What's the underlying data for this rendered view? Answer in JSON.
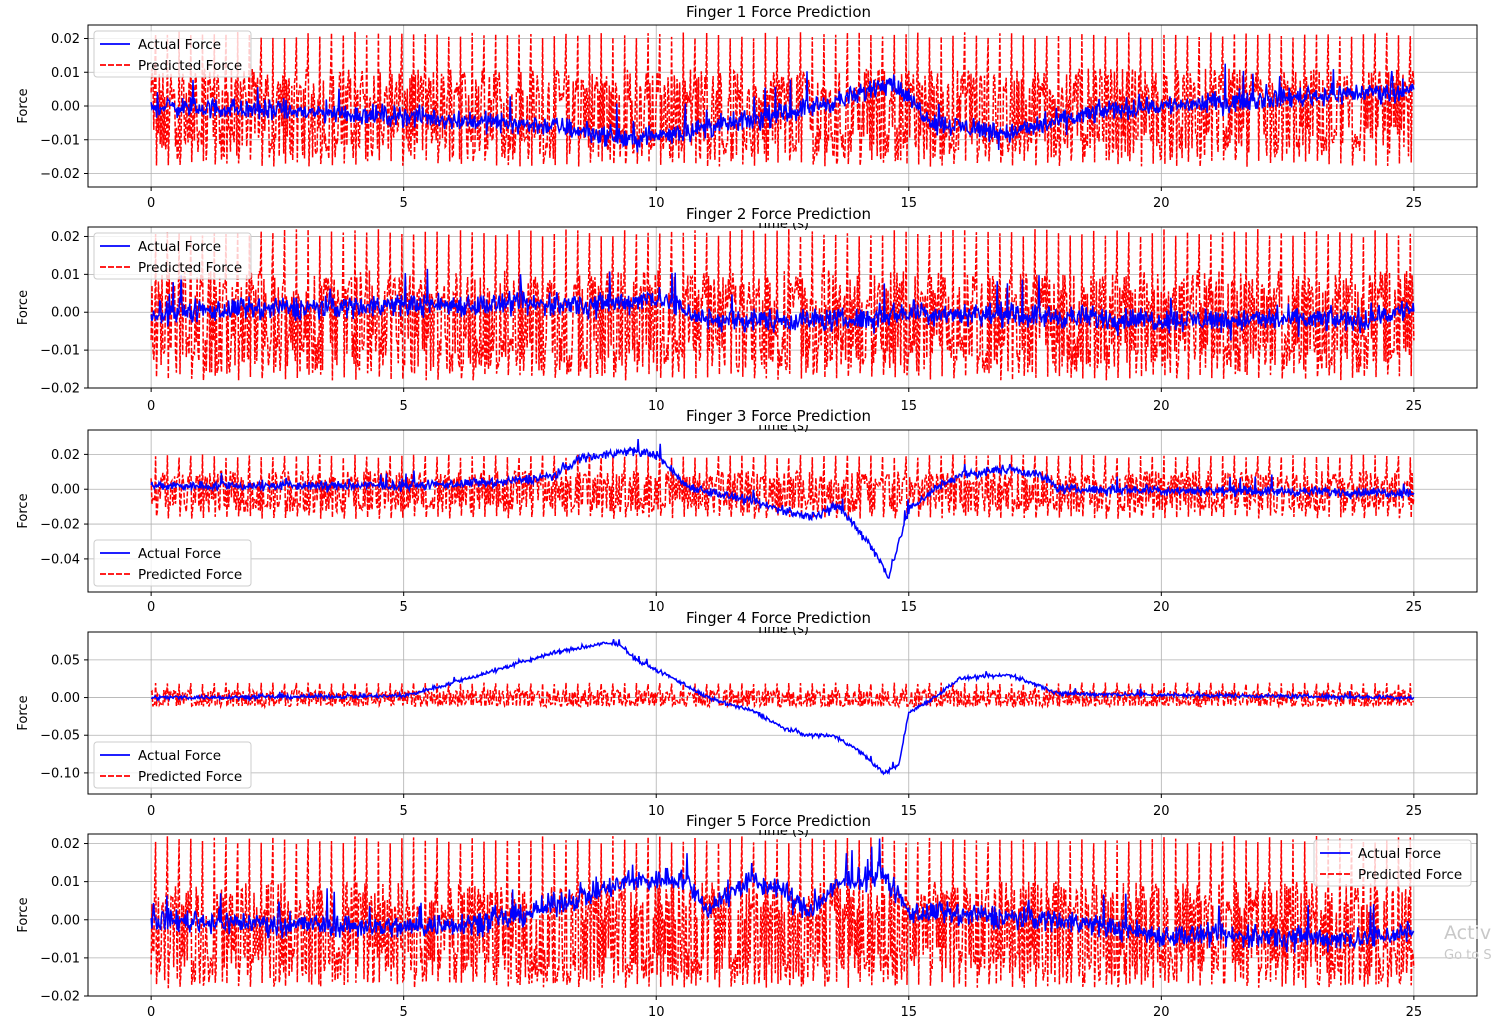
{
  "chart_data": [
    {
      "type": "line",
      "title": "Finger 1 Force Prediction",
      "xlabel": "Time (s)",
      "ylabel": "Force",
      "xlim": [
        -1.25,
        26.25
      ],
      "ylim": [
        -0.024,
        0.024
      ],
      "xticks": [
        0,
        5,
        10,
        15,
        20,
        25
      ],
      "yticks": [
        -0.02,
        -0.01,
        0.0,
        0.01,
        0.02
      ],
      "ytick_labels": [
        "−0.02",
        "−0.01",
        "0.00",
        "0.01",
        "0.02"
      ],
      "grid": true,
      "legend_position": "upper left",
      "series": [
        {
          "name": "Actual Force",
          "color": "#0000ff",
          "style": "solid",
          "x_range": [
            0,
            25
          ],
          "baseline": -0.003,
          "noise": 0.0045,
          "trend": [
            [
              0,
              0.0
            ],
            [
              5,
              -0.003
            ],
            [
              8,
              -0.006
            ],
            [
              9.5,
              -0.01
            ],
            [
              12,
              -0.004
            ],
            [
              14,
              0.003
            ],
            [
              14.6,
              0.008
            ],
            [
              15.5,
              -0.005
            ],
            [
              17,
              -0.008
            ],
            [
              19,
              -0.001
            ],
            [
              22,
              0.002
            ],
            [
              25,
              0.005
            ]
          ]
        },
        {
          "name": "Predicted Force",
          "color": "#ff0000",
          "style": "dashed",
          "x_range": [
            0,
            25
          ],
          "center": -0.003,
          "band": [
            -0.011,
            0.006
          ],
          "spike_max": 0.022,
          "spike_min": -0.018
        }
      ]
    },
    {
      "type": "line",
      "title": "Finger 2 Force Prediction",
      "xlabel": "Time (s)",
      "ylabel": "Force",
      "xlim": [
        -1.25,
        26.25
      ],
      "ylim": [
        -0.02,
        0.0225
      ],
      "xticks": [
        0,
        5,
        10,
        15,
        20,
        25
      ],
      "yticks": [
        -0.02,
        -0.01,
        0.0,
        0.01,
        0.02
      ],
      "ytick_labels": [
        "−0.02",
        "−0.01",
        "0.00",
        "0.01",
        "0.02"
      ],
      "grid": true,
      "legend_position": "upper left",
      "series": [
        {
          "name": "Actual Force",
          "color": "#0000ff",
          "style": "solid",
          "x_range": [
            0,
            25
          ],
          "baseline": 0.0,
          "noise": 0.0045,
          "trend": [
            [
              0,
              0.0
            ],
            [
              5,
              0.002
            ],
            [
              9,
              0.002
            ],
            [
              10,
              0.004
            ],
            [
              11,
              -0.002
            ],
            [
              14,
              -0.002
            ],
            [
              15,
              0.0
            ],
            [
              20,
              -0.002
            ],
            [
              24,
              -0.002
            ],
            [
              25,
              0.001
            ]
          ]
        },
        {
          "name": "Predicted Force",
          "color": "#ff0000",
          "style": "dashed",
          "x_range": [
            0,
            25
          ],
          "center": -0.003,
          "band": [
            -0.011,
            0.006
          ],
          "spike_max": 0.022,
          "spike_min": -0.018
        }
      ]
    },
    {
      "type": "line",
      "title": "Finger 3 Force Prediction",
      "xlabel": "Time (s)",
      "ylabel": "Force",
      "xlim": [
        -1.25,
        26.25
      ],
      "ylim": [
        -0.059,
        0.034
      ],
      "xticks": [
        0,
        5,
        10,
        15,
        20,
        25
      ],
      "yticks": [
        -0.04,
        -0.02,
        0.0,
        0.02
      ],
      "ytick_labels": [
        "−0.04",
        "−0.02",
        "0.00",
        "0.02"
      ],
      "grid": true,
      "legend_position": "lower left",
      "series": [
        {
          "name": "Actual Force",
          "color": "#0000ff",
          "style": "solid",
          "x_range": [
            0,
            25
          ],
          "baseline": 0.0,
          "noise": 0.004,
          "trend": [
            [
              0,
              0.002
            ],
            [
              5,
              0.002
            ],
            [
              7,
              0.004
            ],
            [
              8,
              0.008
            ],
            [
              8.5,
              0.018
            ],
            [
              9.5,
              0.022
            ],
            [
              10,
              0.02
            ],
            [
              10.6,
              0.002
            ],
            [
              12,
              -0.008
            ],
            [
              13,
              -0.016
            ],
            [
              13.6,
              -0.01
            ],
            [
              14.2,
              -0.03
            ],
            [
              14.6,
              -0.05
            ],
            [
              15,
              -0.012
            ],
            [
              15.5,
              0.0
            ],
            [
              16,
              0.008
            ],
            [
              17,
              0.012
            ],
            [
              17.6,
              0.008
            ],
            [
              18,
              0.0
            ],
            [
              25,
              -0.002
            ]
          ]
        },
        {
          "name": "Predicted Force",
          "color": "#ff0000",
          "style": "dashed",
          "x_range": [
            0,
            25
          ],
          "center": -0.002,
          "band": [
            -0.009,
            0.006
          ],
          "spike_max": 0.02,
          "spike_min": -0.017
        }
      ]
    },
    {
      "type": "line",
      "title": "Finger 4 Force Prediction",
      "xlabel": "Time (s)",
      "ylabel": "Force",
      "xlim": [
        -1.25,
        26.25
      ],
      "ylim": [
        -0.128,
        0.087
      ],
      "xticks": [
        0,
        5,
        10,
        15,
        20,
        25
      ],
      "yticks": [
        -0.1,
        -0.05,
        0.0,
        0.05
      ],
      "ytick_labels": [
        "−0.10",
        "−0.05",
        "0.00",
        "0.05"
      ],
      "grid": true,
      "legend_position": "lower left",
      "series": [
        {
          "name": "Actual Force",
          "color": "#0000ff",
          "style": "solid",
          "x_range": [
            0,
            25
          ],
          "baseline": 0.0,
          "noise": 0.004,
          "trend": [
            [
              0,
              0.0
            ],
            [
              5,
              0.002
            ],
            [
              6,
              0.02
            ],
            [
              7,
              0.04
            ],
            [
              8,
              0.06
            ],
            [
              9,
              0.072
            ],
            [
              9.3,
              0.07
            ],
            [
              9.6,
              0.05
            ],
            [
              10.5,
              0.02
            ],
            [
              11,
              0.0
            ],
            [
              11.5,
              -0.01
            ],
            [
              12,
              -0.02
            ],
            [
              12.5,
              -0.04
            ],
            [
              13,
              -0.05
            ],
            [
              13.5,
              -0.05
            ],
            [
              14,
              -0.07
            ],
            [
              14.5,
              -0.1
            ],
            [
              14.8,
              -0.09
            ],
            [
              15,
              -0.02
            ],
            [
              15.5,
              0.0
            ],
            [
              16,
              0.025
            ],
            [
              17,
              0.03
            ],
            [
              17.4,
              0.02
            ],
            [
              18,
              0.005
            ],
            [
              25,
              0.0
            ]
          ]
        },
        {
          "name": "Predicted Force",
          "color": "#ff0000",
          "style": "dashed",
          "x_range": [
            0,
            25
          ],
          "center": -0.002,
          "band": [
            -0.008,
            0.006
          ],
          "spike_max": 0.02,
          "spike_min": -0.012
        }
      ]
    },
    {
      "type": "line",
      "title": "Finger 5 Force Prediction",
      "xlabel": "",
      "ylabel": "Force",
      "xlim": [
        -1.25,
        26.25
      ],
      "ylim": [
        -0.02,
        0.0225
      ],
      "xticks": [
        0,
        5,
        10,
        15,
        20,
        25
      ],
      "yticks": [
        -0.02,
        -0.01,
        0.0,
        0.01,
        0.02
      ],
      "ytick_labels": [
        "−0.02",
        "−0.01",
        "0.00",
        "0.01",
        "0.02"
      ],
      "grid": true,
      "legend_position": "upper right",
      "series": [
        {
          "name": "Actual Force",
          "color": "#0000ff",
          "style": "solid",
          "x_range": [
            0,
            25
          ],
          "baseline": 0.0,
          "noise": 0.0045,
          "trend": [
            [
              0,
              0.0
            ],
            [
              5,
              -0.002
            ],
            [
              7,
              0.0
            ],
            [
              8,
              0.004
            ],
            [
              9.5,
              0.01
            ],
            [
              10.5,
              0.011
            ],
            [
              11,
              0.003
            ],
            [
              11.8,
              0.01
            ],
            [
              12.5,
              0.008
            ],
            [
              13,
              0.002
            ],
            [
              13.7,
              0.01
            ],
            [
              14.5,
              0.012
            ],
            [
              15,
              0.002
            ],
            [
              18,
              0.0
            ],
            [
              20,
              -0.004
            ],
            [
              24,
              -0.005
            ],
            [
              25,
              -0.003
            ]
          ]
        },
        {
          "name": "Predicted Force",
          "color": "#ff0000",
          "style": "dashed",
          "x_range": [
            0,
            25
          ],
          "center": -0.004,
          "band": [
            -0.012,
            0.005
          ],
          "spike_max": 0.022,
          "spike_min": -0.018
        }
      ]
    }
  ],
  "watermark": {
    "line1": "Activ",
    "line2": "Go to S"
  }
}
